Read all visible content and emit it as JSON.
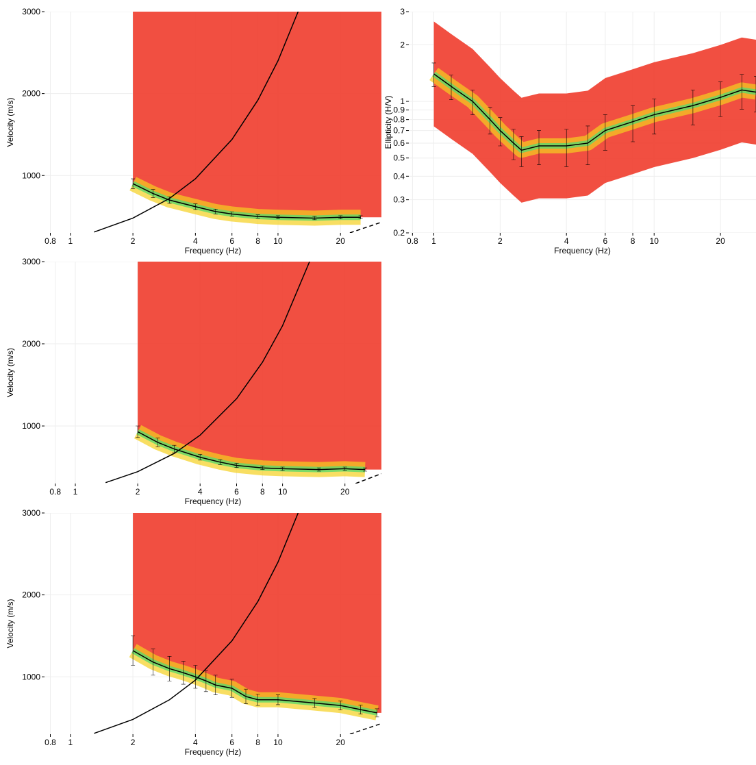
{
  "chart_data": [
    {
      "type": "line",
      "xlabel": "Frequency (Hz)",
      "ylabel": "Velocity (m/s)",
      "xscale": "log",
      "yscale": "linear",
      "xlim": [
        0.75,
        31.5
      ],
      "ylim": [
        300,
        3000
      ],
      "xticks": [
        0.8,
        1,
        2,
        4,
        6,
        8,
        10,
        20
      ],
      "yticks": [
        1000,
        2000,
        3000
      ],
      "grid": true,
      "density_color": "#f03c2c",
      "series": [
        {
          "color": "#000000",
          "x": [
            2,
            2.5,
            3,
            4,
            5,
            6,
            8,
            10,
            15,
            20,
            25
          ],
          "values": [
            900,
            780,
            700,
            620,
            560,
            530,
            500,
            490,
            480,
            490,
            490
          ],
          "errors": [
            60,
            50,
            40,
            35,
            30,
            25,
            20,
            20,
            20,
            20,
            20
          ]
        },
        {
          "color": "#000000",
          "x": [
            1.3,
            2,
            3,
            4,
            6,
            8,
            10,
            12.5
          ],
          "values": [
            310,
            480,
            720,
            960,
            1440,
            1920,
            2400,
            3000
          ]
        },
        {
          "color": "#000000",
          "line_style": "dashed",
          "x": [
            22.2,
            31.5
          ],
          "values": [
            300,
            430
          ]
        }
      ]
    },
    {
      "type": "line",
      "xlabel": "Frequency (Hz)",
      "ylabel": "Ellipticity (H/V)",
      "xscale": "log",
      "yscale": "log",
      "xlim": [
        0.77,
        29
      ],
      "ylim": [
        0.2,
        3
      ],
      "xticks": [
        0.8,
        1,
        2,
        4,
        6,
        8,
        10,
        20
      ],
      "yticks": [
        0.2,
        0.3,
        0.4,
        0.5,
        0.6,
        0.7,
        0.8,
        0.9,
        1,
        2,
        3
      ],
      "grid": true,
      "density_color": "#f03c2c",
      "series": [
        {
          "color": "#000000",
          "x": [
            1,
            1.2,
            1.5,
            1.8,
            2,
            2.3,
            2.5,
            3,
            4,
            5,
            6,
            8,
            10,
            15,
            20,
            25,
            29
          ],
          "values": [
            1.4,
            1.2,
            1.0,
            0.8,
            0.7,
            0.6,
            0.55,
            0.58,
            0.58,
            0.6,
            0.7,
            0.78,
            0.85,
            0.95,
            1.05,
            1.15,
            1.12
          ],
          "errors": [
            0.2,
            0.18,
            0.15,
            0.13,
            0.12,
            0.11,
            0.1,
            0.12,
            0.13,
            0.14,
            0.15,
            0.17,
            0.18,
            0.2,
            0.22,
            0.24,
            0.24
          ]
        }
      ]
    },
    {
      "type": "line",
      "xlabel": "Frequency (Hz)",
      "ylabel": "Velocity (m/s)",
      "xscale": "log",
      "yscale": "linear",
      "xlim": [
        0.71,
        30
      ],
      "ylim": [
        300,
        3000
      ],
      "xticks": [
        0.8,
        1,
        2,
        4,
        6,
        8,
        10,
        20
      ],
      "yticks": [
        1000,
        2000,
        3000
      ],
      "grid": true,
      "density_color": "#f03c2c",
      "series": [
        {
          "color": "#000000",
          "x": [
            2,
            2.5,
            3,
            4,
            5,
            6,
            8,
            10,
            15,
            20,
            25
          ],
          "values": [
            930,
            800,
            720,
            620,
            560,
            520,
            490,
            480,
            470,
            480,
            470
          ],
          "errors": [
            70,
            55,
            45,
            35,
            30,
            25,
            20,
            20,
            20,
            20,
            20
          ]
        },
        {
          "color": "#000000",
          "x": [
            1.4,
            2,
            3,
            4,
            6,
            8,
            10,
            13.5
          ],
          "values": [
            311,
            444,
            666,
            888,
            1332,
            1776,
            2220,
            3000
          ]
        },
        {
          "color": "#000000",
          "line_style": "dashed",
          "x": [
            22.5,
            30
          ],
          "values": [
            300,
            420
          ]
        }
      ]
    },
    {
      "type": "line",
      "xlabel": "Frequency (Hz)",
      "ylabel": "Velocity (m/s)",
      "xscale": "log",
      "yscale": "linear",
      "xlim": [
        0.75,
        31.5
      ],
      "ylim": [
        300,
        3000
      ],
      "xticks": [
        0.8,
        1,
        2,
        4,
        6,
        8,
        10,
        20
      ],
      "yticks": [
        1000,
        2000,
        3000
      ],
      "grid": true,
      "density_color": "#f03c2c",
      "series": [
        {
          "color": "#000000",
          "x": [
            2,
            2.5,
            3,
            3.5,
            4,
            4.5,
            5,
            6,
            7,
            8,
            10,
            15,
            20,
            25,
            30
          ],
          "values": [
            1320,
            1180,
            1100,
            1050,
            1000,
            950,
            900,
            860,
            760,
            720,
            720,
            680,
            650,
            600,
            560
          ],
          "errors": [
            180,
            160,
            150,
            140,
            140,
            130,
            120,
            110,
            90,
            70,
            60,
            55,
            55,
            55,
            50
          ]
        },
        {
          "color": "#000000",
          "x": [
            1.3,
            2,
            3,
            4,
            6,
            8,
            10,
            12.5
          ],
          "values": [
            310,
            480,
            720,
            960,
            1440,
            1920,
            2400,
            3000
          ]
        },
        {
          "color": "#000000",
          "line_style": "dashed",
          "x": [
            22.2,
            31.5
          ],
          "values": [
            300,
            430
          ]
        }
      ]
    }
  ]
}
